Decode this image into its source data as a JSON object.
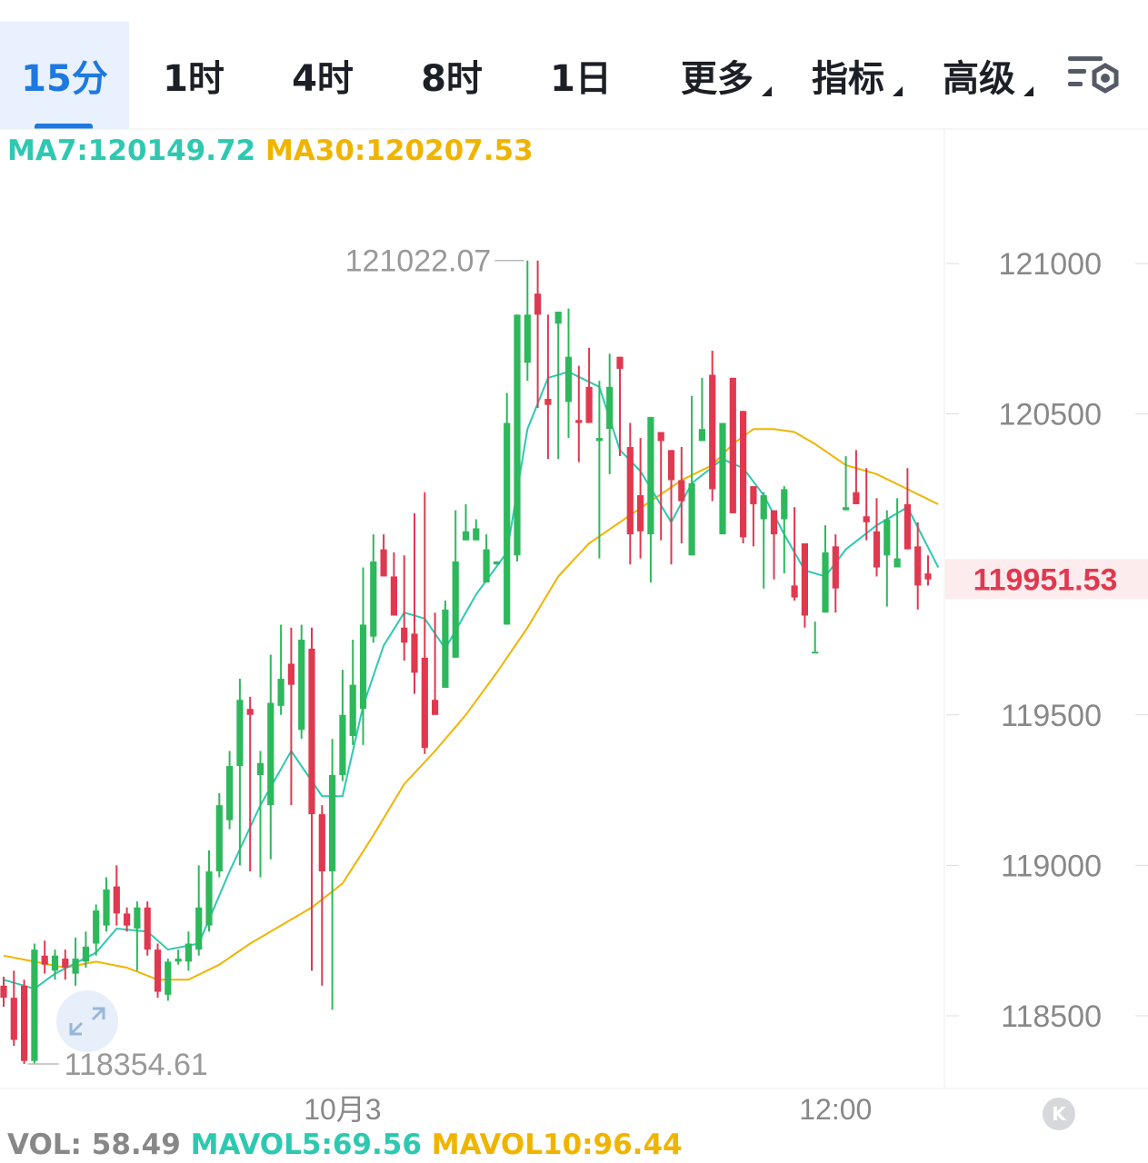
{
  "tabs": [
    {
      "label": "15分",
      "active": true
    },
    {
      "label": "1时"
    },
    {
      "label": "4时"
    },
    {
      "label": "8时"
    },
    {
      "label": "1日"
    },
    {
      "label": "更多",
      "dropdown": true
    },
    {
      "label": "指标",
      "dropdown": true
    },
    {
      "label": "高级",
      "dropdown": true
    }
  ],
  "legend": {
    "ma7": "MA7:120149.72",
    "ma30": "MA30:120207.53"
  },
  "volume_legend": {
    "vol": "VOL: 58.49",
    "mavol5": "MAVOL5:69.56",
    "mavol10": "MAVOL10:96.44"
  },
  "colors": {
    "up": "#2eb85c",
    "down": "#e0394f",
    "ma7": "#2ec8b0",
    "ma30": "#f0b400",
    "accent": "#1f78e0",
    "axis_text": "#888888",
    "last_price_bg": "#fdecee"
  },
  "icons": {
    "settings": "chart-settings-icon",
    "expand": "expand-arrows-icon",
    "k": "k-logo-icon"
  },
  "chart_data": {
    "type": "candlestick",
    "y_ticks": [
      "121000",
      "120500",
      "119500",
      "119000",
      "118500"
    ],
    "ylim": [
      118300,
      121300
    ],
    "x_labels": [
      {
        "text": "10月3",
        "index": 33
      },
      {
        "text": "12:00",
        "index": 81
      }
    ],
    "high_label": "121022.07",
    "low_label": "118354.61",
    "last_price": "119951.53",
    "last_price_value": 119951.53,
    "candles": [
      [
        118600,
        118560,
        118630,
        118530
      ],
      [
        118560,
        118420,
        118650,
        118400
      ],
      [
        118600,
        118350,
        118620,
        118340
      ],
      [
        118350,
        118720,
        118740,
        118340
      ],
      [
        118700,
        118670,
        118750,
        118640
      ],
      [
        118650,
        118700,
        118720,
        118620
      ],
      [
        118690,
        118660,
        118720,
        118620
      ],
      [
        118640,
        118690,
        118760,
        118600
      ],
      [
        118680,
        118730,
        118780,
        118660
      ],
      [
        118740,
        118850,
        118870,
        118700
      ],
      [
        118800,
        118920,
        118960,
        118780
      ],
      [
        118930,
        118840,
        119000,
        118800
      ],
      [
        118840,
        118800,
        118860,
        118780
      ],
      [
        118790,
        118860,
        118880,
        118650
      ],
      [
        118860,
        118720,
        118880,
        118700
      ],
      [
        118720,
        118580,
        118740,
        118560
      ],
      [
        118570,
        118680,
        118690,
        118550
      ],
      [
        118680,
        118690,
        118720,
        118670
      ],
      [
        118680,
        118740,
        118780,
        118650
      ],
      [
        118720,
        118860,
        119000,
        118700
      ],
      [
        118800,
        118980,
        119050,
        118780
      ],
      [
        118980,
        119200,
        119240,
        118960
      ],
      [
        119150,
        119330,
        119380,
        119120
      ],
      [
        119330,
        119550,
        119620,
        119000
      ],
      [
        119520,
        119500,
        119560,
        118980
      ],
      [
        119300,
        119340,
        119380,
        118960
      ],
      [
        119200,
        119540,
        119700,
        119020
      ],
      [
        119530,
        119620,
        119800,
        119500
      ],
      [
        119670,
        119600,
        119790,
        119200
      ],
      [
        119450,
        119750,
        119800,
        119420
      ],
      [
        119720,
        119170,
        119790,
        118650
      ],
      [
        119170,
        118980,
        119200,
        118600
      ],
      [
        118980,
        119300,
        119420,
        118520
      ],
      [
        119300,
        119500,
        119650,
        119280
      ],
      [
        119430,
        119600,
        119750,
        119400
      ],
      [
        119520,
        119800,
        119990,
        119400
      ],
      [
        119760,
        120010,
        120100,
        119740
      ],
      [
        120050,
        119960,
        120100,
        119960
      ],
      [
        119960,
        119830,
        120040,
        119830
      ],
      [
        119790,
        119740,
        120030,
        119680
      ],
      [
        119770,
        119640,
        120170,
        119570
      ],
      [
        119690,
        119390,
        120240,
        119370
      ],
      [
        119550,
        119500,
        119840,
        119510
      ],
      [
        119590,
        119850,
        119880,
        119590
      ],
      [
        119690,
        120010,
        120180,
        119800
      ],
      [
        120080,
        120110,
        120200,
        120080
      ],
      [
        120080,
        120120,
        120150,
        120080
      ],
      [
        119940,
        120050,
        120100,
        119940
      ],
      [
        120000,
        120010,
        120000,
        120000
      ],
      [
        119800,
        120470,
        120570,
        119820
      ],
      [
        120030,
        120830,
        120760,
        120010
      ],
      [
        120670,
        120830,
        121010,
        120610
      ],
      [
        120900,
        120830,
        121010,
        120520
      ],
      [
        120550,
        120530,
        120830,
        120350
      ],
      [
        120800,
        120840,
        120800,
        120350
      ],
      [
        120540,
        120690,
        120850,
        120420
      ],
      [
        120480,
        120470,
        120660,
        120340
      ],
      [
        120590,
        120470,
        120720,
        120490
      ],
      [
        120410,
        120420,
        120610,
        120020
      ],
      [
        120450,
        120590,
        120700,
        120300
      ],
      [
        120690,
        120650,
        120690,
        120360
      ],
      [
        120390,
        120100,
        120470,
        120000
      ],
      [
        120230,
        120110,
        120420,
        120020
      ],
      [
        120100,
        120490,
        120460,
        119940
      ],
      [
        120440,
        120410,
        120440,
        120080
      ],
      [
        120380,
        120280,
        120350,
        120000
      ],
      [
        120280,
        120210,
        120390,
        120070
      ],
      [
        120030,
        120270,
        120560,
        120040
      ],
      [
        120410,
        120450,
        120620,
        120410
      ],
      [
        120630,
        120250,
        120710,
        120210
      ],
      [
        120100,
        120470,
        120470,
        120130
      ],
      [
        120620,
        120170,
        120500,
        120170
      ],
      [
        120510,
        120090,
        120500,
        120070
      ],
      [
        120260,
        120200,
        120260,
        120060
      ],
      [
        120150,
        120230,
        120240,
        119920
      ],
      [
        120180,
        120100,
        120170,
        119950
      ],
      [
        120150,
        120250,
        120260,
        119970
      ],
      [
        119930,
        119890,
        120190,
        119880
      ],
      [
        120070,
        119830,
        120000,
        119790
      ],
      [
        119710,
        119710,
        119810,
        119710
      ],
      [
        119840,
        120040,
        120130,
        120070
      ],
      [
        120060,
        119920,
        120100,
        119840
      ],
      [
        120180,
        120190,
        120360,
        120190
      ],
      [
        120240,
        120200,
        120380,
        120200
      ],
      [
        120160,
        120140,
        120320,
        120080
      ],
      [
        120110,
        119990,
        120220,
        119960
      ],
      [
        120030,
        120150,
        120180,
        119860
      ],
      [
        119990,
        120020,
        120220,
        119990
      ],
      [
        120200,
        120050,
        120320,
        120110
      ],
      [
        120060,
        119930,
        120140,
        119850
      ],
      [
        119970,
        119950,
        120030,
        119930
      ]
    ],
    "ma7_points": [
      [
        0,
        118620
      ],
      [
        3,
        118590
      ],
      [
        5,
        118640
      ],
      [
        9,
        118710
      ],
      [
        11,
        118790
      ],
      [
        14,
        118780
      ],
      [
        16,
        118720
      ],
      [
        19,
        118740
      ],
      [
        22,
        118980
      ],
      [
        25,
        119200
      ],
      [
        28,
        119380
      ],
      [
        31,
        119230
      ],
      [
        33,
        119230
      ],
      [
        35,
        119530
      ],
      [
        37,
        119730
      ],
      [
        39,
        119840
      ],
      [
        41,
        119820
      ],
      [
        43,
        119720
      ],
      [
        46,
        119900
      ],
      [
        49,
        120040
      ],
      [
        51,
        120450
      ],
      [
        53,
        120620
      ],
      [
        55,
        120640
      ],
      [
        58,
        120590
      ],
      [
        60,
        120380
      ],
      [
        62,
        120310
      ],
      [
        65,
        120140
      ],
      [
        67,
        120270
      ],
      [
        70,
        120350
      ],
      [
        72,
        120320
      ],
      [
        74,
        120230
      ],
      [
        76,
        120100
      ],
      [
        78,
        119980
      ],
      [
        80,
        119960
      ],
      [
        82,
        120050
      ],
      [
        85,
        120130
      ],
      [
        88,
        120190
      ],
      [
        91,
        119990
      ]
    ],
    "ma30_points": [
      [
        0,
        118700
      ],
      [
        3,
        118680
      ],
      [
        6,
        118660
      ],
      [
        9,
        118680
      ],
      [
        12,
        118660
      ],
      [
        15,
        118620
      ],
      [
        18,
        118620
      ],
      [
        21,
        118670
      ],
      [
        24,
        118740
      ],
      [
        27,
        118800
      ],
      [
        30,
        118860
      ],
      [
        33,
        118940
      ],
      [
        36,
        119100
      ],
      [
        39,
        119270
      ],
      [
        42,
        119380
      ],
      [
        45,
        119500
      ],
      [
        48,
        119640
      ],
      [
        51,
        119790
      ],
      [
        54,
        119960
      ],
      [
        57,
        120070
      ],
      [
        60,
        120140
      ],
      [
        63,
        120210
      ],
      [
        66,
        120280
      ],
      [
        69,
        120330
      ],
      [
        71,
        120400
      ],
      [
        73,
        120450
      ],
      [
        75,
        120450
      ],
      [
        77,
        120440
      ],
      [
        79,
        120400
      ],
      [
        82,
        120330
      ],
      [
        85,
        120300
      ],
      [
        88,
        120250
      ],
      [
        91,
        120200
      ]
    ]
  }
}
